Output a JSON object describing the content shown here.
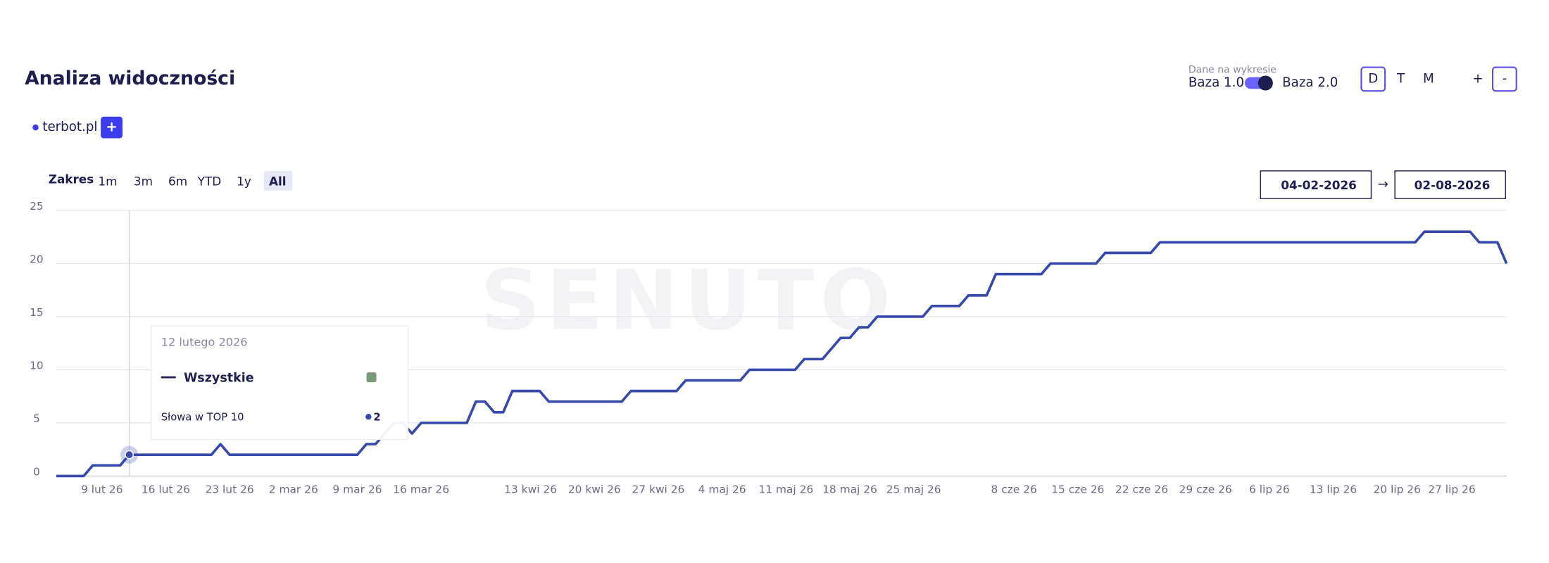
{
  "header": {
    "title": "Analiza widoczności",
    "data_label": "Dane na wykresie",
    "toggle_left": "Baza 1.0",
    "toggle_right": "Baza 2.0",
    "granularity": [
      "D",
      "T",
      "M"
    ],
    "zoom": [
      "+",
      "-"
    ]
  },
  "domains": [
    {
      "name": "terbot.pl"
    }
  ],
  "add_button": "+",
  "range": {
    "label": "Zakres",
    "options": [
      "1m",
      "3m",
      "6m",
      "YTD",
      "1y",
      "All"
    ]
  },
  "date_from": "04-02-2026",
  "arrow": "→",
  "date_to": "02-08-2026",
  "watermark": "SENUTO",
  "chart_data": {
    "type": "line",
    "categories": [
      null,
      null,
      null,
      null,
      null,
      "9 lut 26",
      null,
      null,
      null,
      null,
      null,
      null,
      "16 lut 26",
      null,
      null,
      null,
      null,
      null,
      null,
      "23 lut 26",
      null,
      null,
      null,
      null,
      null,
      null,
      "2 mar 26",
      null,
      null,
      null,
      null,
      null,
      null,
      "9 mar 26",
      null,
      null,
      null,
      null,
      null,
      null,
      "16 mar 26",
      null,
      null,
      null,
      null,
      null,
      null,
      null,
      null,
      null,
      null,
      null,
      "13 kwi 26",
      null,
      null,
      null,
      null,
      null,
      null,
      "20 kwi 26",
      null,
      null,
      null,
      null,
      null,
      null,
      "27 kwi 26",
      null,
      null,
      null,
      null,
      null,
      null,
      "4 maj 26",
      null,
      null,
      null,
      null,
      null,
      null,
      "11 maj 26",
      null,
      null,
      null,
      null,
      null,
      null,
      "18 maj 26",
      null,
      null,
      null,
      null,
      null,
      null,
      "25 maj 26",
      null,
      null,
      null,
      null,
      null,
      null,
      null,
      null,
      null,
      null,
      "8 cze 26",
      null,
      null,
      null,
      null,
      null,
      null,
      "15 cze 26",
      null,
      null,
      null,
      null,
      null,
      null,
      "22 cze 26",
      null,
      null,
      null,
      null,
      null,
      null,
      "29 cze 26",
      null,
      null,
      null,
      null,
      null,
      null,
      "6 lip 26",
      null,
      null,
      null,
      null,
      null,
      null,
      "13 lip 26",
      null,
      null,
      null,
      null,
      null,
      null,
      "20 lip 26",
      null,
      null,
      null,
      null,
      null,
      "27 lip 26",
      null,
      null,
      null,
      null,
      null,
      null
    ],
    "series": [
      {
        "name": "Wszystkie",
        "color": "#3949ab",
        "values": [
          0,
          0,
          0,
          0,
          1,
          1,
          1,
          1,
          2,
          2,
          2,
          2,
          2,
          2,
          2,
          2,
          2,
          2,
          3,
          2,
          2,
          2,
          2,
          2,
          2,
          2,
          2,
          2,
          2,
          2,
          2,
          2,
          2,
          2,
          3,
          3,
          4,
          5,
          5,
          4,
          5,
          5,
          5,
          5,
          5,
          5,
          7,
          7,
          6,
          6,
          8,
          8,
          8,
          8,
          7,
          7,
          7,
          7,
          7,
          7,
          7,
          7,
          7,
          8,
          8,
          8,
          8,
          8,
          8,
          9,
          9,
          9,
          9,
          9,
          9,
          9,
          10,
          10,
          10,
          10,
          10,
          10,
          11,
          11,
          11,
          12,
          13,
          13,
          14,
          14,
          15,
          15,
          15,
          15,
          15,
          15,
          16,
          16,
          16,
          16,
          17,
          17,
          17,
          19,
          19,
          19,
          19,
          19,
          19,
          20,
          20,
          20,
          20,
          20,
          20,
          21,
          21,
          21,
          21,
          21,
          21,
          22,
          22,
          22,
          22,
          22,
          22,
          22,
          22,
          22,
          22,
          22,
          22,
          22,
          22,
          22,
          22,
          22,
          22,
          22,
          22,
          22,
          22,
          22,
          22,
          22,
          22,
          22,
          22,
          22,
          23,
          23,
          23,
          23,
          23,
          23,
          22,
          22,
          22,
          20
        ]
      }
    ],
    "ylim": [
      0,
      25
    ],
    "yticks": [
      0,
      5,
      10,
      15,
      20,
      25
    ],
    "grid": true
  },
  "tooltip": {
    "date": "12 lutego 2026",
    "metric": "Słowa w TOP 10",
    "value": 2
  }
}
